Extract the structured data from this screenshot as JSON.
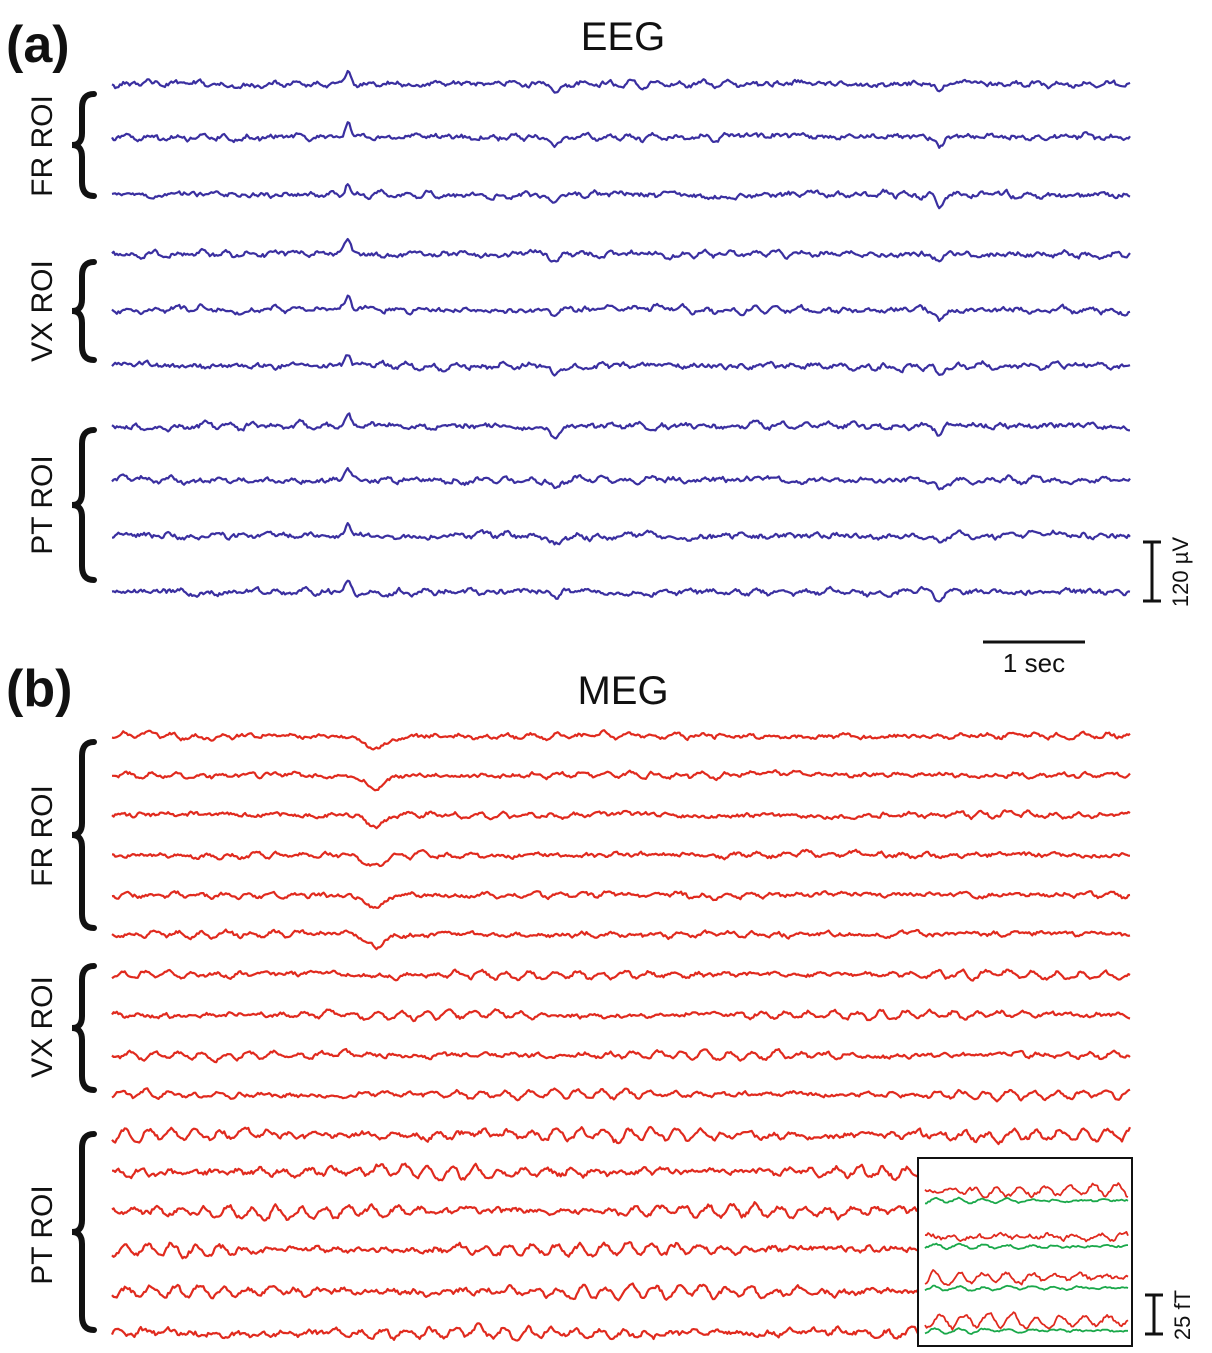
{
  "panels": {
    "a": {
      "letter": "(a)",
      "title": "EEG",
      "roi_groups": [
        {
          "label": "FR ROI",
          "traces": 3
        },
        {
          "label": "VX ROI",
          "traces": 3
        },
        {
          "label": "PT ROI",
          "traces": 4
        }
      ],
      "scale_bar": "120 µV",
      "time_bar": "1 sec"
    },
    "b": {
      "letter": "(b)",
      "title": "MEG",
      "roi_groups": [
        {
          "label": "FR ROI",
          "traces": 6
        },
        {
          "label": "VX ROI",
          "traces": 4
        },
        {
          "label": "PT ROI",
          "traces": 6
        }
      ],
      "scale_bar": "25 fT"
    }
  },
  "colors": {
    "eeg": "#3a2fa0",
    "meg": "#e02a1e",
    "inset_green": "#1aa84a",
    "ink": "#111111"
  }
}
